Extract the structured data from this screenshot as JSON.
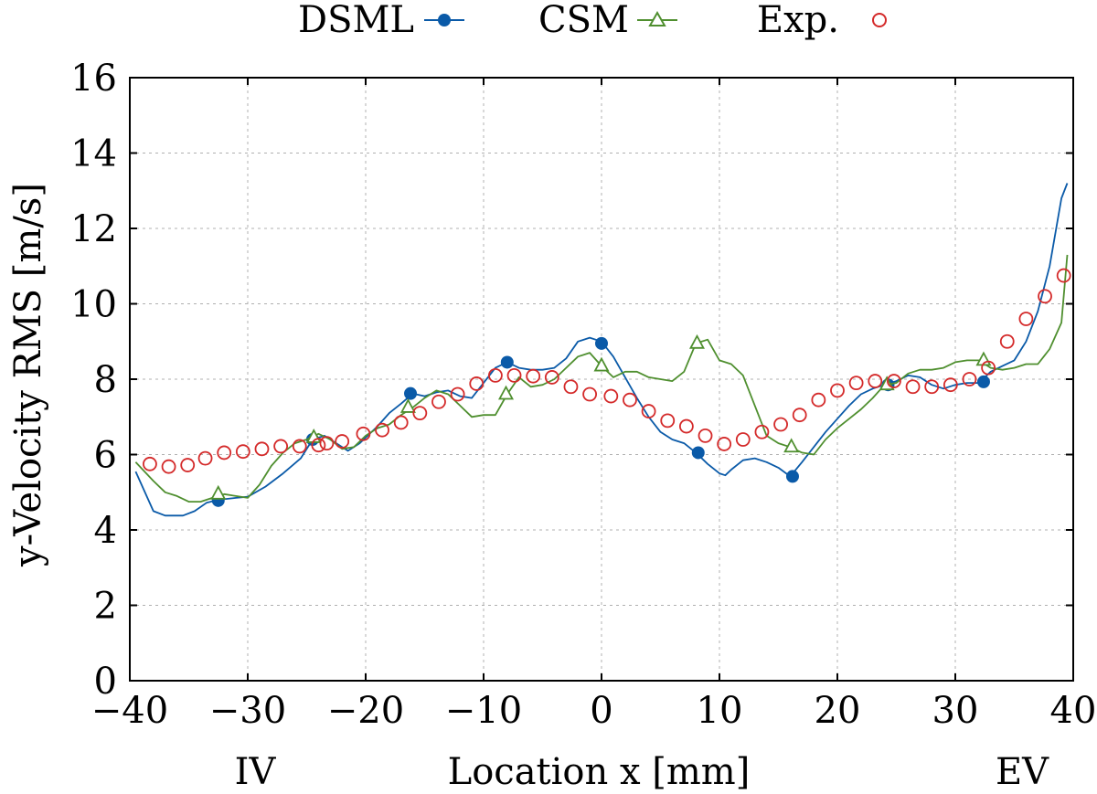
{
  "chart_data": {
    "type": "line",
    "xlabel": "Location x [mm]",
    "ylabel": "y-Velocity RMS [m/s]",
    "xlim": [
      -40,
      40
    ],
    "ylim": [
      0,
      16
    ],
    "xticks": [
      -40,
      -30,
      -20,
      -10,
      0,
      10,
      20,
      30,
      40
    ],
    "yticks": [
      0,
      2,
      4,
      6,
      8,
      10,
      12,
      14,
      16
    ],
    "xtick_labels": [
      "−40",
      "−30",
      "−20",
      "−10",
      "0",
      "10",
      "20",
      "30",
      "40"
    ],
    "ytick_labels": [
      "0",
      "2",
      "4",
      "6",
      "8",
      "10",
      "12",
      "14",
      "16"
    ],
    "grid": true,
    "legend_position": "top-center",
    "annotations": {
      "left": "IV",
      "right": "EV"
    },
    "series": [
      {
        "name": "DSML",
        "color": "#0a5aa8",
        "marker": "filled-circle",
        "line": [
          [
            -39.5,
            5.55
          ],
          [
            -38,
            4.5
          ],
          [
            -37,
            4.38
          ],
          [
            -35.5,
            4.38
          ],
          [
            -34.5,
            4.5
          ],
          [
            -33.5,
            4.72
          ],
          [
            -32.5,
            4.8
          ],
          [
            -31,
            4.85
          ],
          [
            -30,
            4.88
          ],
          [
            -28.5,
            5.15
          ],
          [
            -27,
            5.5
          ],
          [
            -25.5,
            5.9
          ],
          [
            -24.5,
            6.4
          ],
          [
            -23.5,
            6.5
          ],
          [
            -22.5,
            6.3
          ],
          [
            -21.5,
            6.1
          ],
          [
            -20.5,
            6.3
          ],
          [
            -19,
            6.75
          ],
          [
            -18,
            7.1
          ],
          [
            -17,
            7.35
          ],
          [
            -16,
            7.62
          ],
          [
            -15,
            7.55
          ],
          [
            -14,
            7.65
          ],
          [
            -13,
            7.7
          ],
          [
            -12,
            7.55
          ],
          [
            -11,
            7.5
          ],
          [
            -10,
            7.9
          ],
          [
            -9,
            8.3
          ],
          [
            -8,
            8.45
          ],
          [
            -7,
            8.3
          ],
          [
            -6,
            8.25
          ],
          [
            -5,
            8.25
          ],
          [
            -4,
            8.3
          ],
          [
            -3,
            8.55
          ],
          [
            -2,
            9.0
          ],
          [
            -1,
            9.1
          ],
          [
            0,
            9.0
          ],
          [
            1,
            8.6
          ],
          [
            2,
            8.05
          ],
          [
            3,
            7.5
          ],
          [
            4,
            7.0
          ],
          [
            5,
            6.6
          ],
          [
            6,
            6.4
          ],
          [
            7,
            6.3
          ],
          [
            8,
            6.05
          ],
          [
            9,
            5.75
          ],
          [
            10,
            5.5
          ],
          [
            10.5,
            5.45
          ],
          [
            11,
            5.6
          ],
          [
            12,
            5.85
          ],
          [
            13,
            5.9
          ],
          [
            14,
            5.8
          ],
          [
            15,
            5.65
          ],
          [
            16,
            5.42
          ],
          [
            17,
            5.8
          ],
          [
            18,
            6.2
          ],
          [
            19,
            6.6
          ],
          [
            20,
            6.95
          ],
          [
            21,
            7.3
          ],
          [
            22,
            7.6
          ],
          [
            23,
            7.75
          ],
          [
            24,
            7.85
          ],
          [
            25,
            7.95
          ],
          [
            26,
            8.1
          ],
          [
            27,
            8.05
          ],
          [
            28,
            7.85
          ],
          [
            29,
            7.75
          ],
          [
            30,
            7.85
          ],
          [
            31,
            7.9
          ],
          [
            32,
            7.9
          ],
          [
            33,
            8.2
          ],
          [
            34,
            8.35
          ],
          [
            35,
            8.5
          ],
          [
            36,
            9.0
          ],
          [
            37,
            9.8
          ],
          [
            38,
            11.0
          ],
          [
            39,
            12.8
          ],
          [
            39.5,
            13.2
          ]
        ],
        "markers": [
          [
            -32.5,
            4.78
          ],
          [
            -24.5,
            6.4
          ],
          [
            -16.2,
            7.62
          ],
          [
            -8,
            8.45
          ],
          [
            0,
            8.95
          ],
          [
            8.2,
            6.05
          ],
          [
            16.2,
            5.42
          ],
          [
            24.3,
            7.85
          ],
          [
            32.4,
            7.93
          ]
        ]
      },
      {
        "name": "CSM",
        "color": "#4f8f2f",
        "marker": "open-triangle",
        "line": [
          [
            -39.5,
            5.8
          ],
          [
            -38,
            5.3
          ],
          [
            -37,
            5.0
          ],
          [
            -36,
            4.9
          ],
          [
            -35,
            4.75
          ],
          [
            -34,
            4.75
          ],
          [
            -33,
            4.85
          ],
          [
            -32,
            4.95
          ],
          [
            -31,
            4.9
          ],
          [
            -30,
            4.85
          ],
          [
            -29,
            5.2
          ],
          [
            -28,
            5.7
          ],
          [
            -27,
            6.05
          ],
          [
            -26,
            6.3
          ],
          [
            -25,
            6.4
          ],
          [
            -24,
            6.55
          ],
          [
            -23,
            6.4
          ],
          [
            -22,
            6.15
          ],
          [
            -21,
            6.2
          ],
          [
            -20,
            6.5
          ],
          [
            -19,
            6.7
          ],
          [
            -18,
            6.8
          ],
          [
            -17,
            7.05
          ],
          [
            -16,
            7.25
          ],
          [
            -15,
            7.5
          ],
          [
            -14,
            7.7
          ],
          [
            -13,
            7.6
          ],
          [
            -12,
            7.3
          ],
          [
            -11,
            7.0
          ],
          [
            -10,
            7.05
          ],
          [
            -9,
            7.05
          ],
          [
            -8,
            7.6
          ],
          [
            -7,
            8.05
          ],
          [
            -6,
            7.8
          ],
          [
            -5,
            7.85
          ],
          [
            -4,
            8.0
          ],
          [
            -3,
            8.3
          ],
          [
            -2,
            8.6
          ],
          [
            -1,
            8.7
          ],
          [
            0,
            8.35
          ],
          [
            1,
            8.05
          ],
          [
            2,
            8.2
          ],
          [
            3,
            8.2
          ],
          [
            4,
            8.05
          ],
          [
            5,
            8.0
          ],
          [
            6,
            7.95
          ],
          [
            7,
            8.2
          ],
          [
            8,
            8.95
          ],
          [
            9,
            9.05
          ],
          [
            10,
            8.5
          ],
          [
            11,
            8.4
          ],
          [
            12,
            8.1
          ],
          [
            13,
            7.3
          ],
          [
            14,
            6.5
          ],
          [
            15,
            6.3
          ],
          [
            16,
            6.2
          ],
          [
            17,
            6.05
          ],
          [
            18,
            6.0
          ],
          [
            19,
            6.4
          ],
          [
            20,
            6.7
          ],
          [
            21,
            6.95
          ],
          [
            22,
            7.2
          ],
          [
            23,
            7.5
          ],
          [
            24,
            7.85
          ],
          [
            25,
            7.9
          ],
          [
            26,
            8.15
          ],
          [
            27,
            8.25
          ],
          [
            28,
            8.25
          ],
          [
            29,
            8.3
          ],
          [
            30,
            8.45
          ],
          [
            31,
            8.5
          ],
          [
            32,
            8.5
          ],
          [
            33,
            8.3
          ],
          [
            34,
            8.25
          ],
          [
            35,
            8.3
          ],
          [
            36,
            8.4
          ],
          [
            37,
            8.4
          ],
          [
            38,
            8.8
          ],
          [
            39,
            9.5
          ],
          [
            39.5,
            11.3
          ]
        ],
        "markers": [
          [
            -32.5,
            4.95
          ],
          [
            -24.4,
            6.45
          ],
          [
            -16.4,
            7.25
          ],
          [
            -8.1,
            7.6
          ],
          [
            0,
            8.35
          ],
          [
            8.1,
            8.95
          ],
          [
            16.1,
            6.2
          ],
          [
            24.2,
            7.85
          ],
          [
            32.4,
            8.5
          ]
        ]
      },
      {
        "name": "Exp.",
        "color": "#d42a2a",
        "marker": "open-circle",
        "points": [
          [
            -38.3,
            5.75
          ],
          [
            -36.7,
            5.68
          ],
          [
            -35.1,
            5.72
          ],
          [
            -33.6,
            5.9
          ],
          [
            -32,
            6.05
          ],
          [
            -30.4,
            6.08
          ],
          [
            -28.8,
            6.15
          ],
          [
            -27.2,
            6.22
          ],
          [
            -25.6,
            6.22
          ],
          [
            -24,
            6.25
          ],
          [
            -23.3,
            6.3
          ],
          [
            -22,
            6.35
          ],
          [
            -20.2,
            6.55
          ],
          [
            -18.6,
            6.65
          ],
          [
            -17,
            6.85
          ],
          [
            -15.4,
            7.1
          ],
          [
            -13.8,
            7.4
          ],
          [
            -12.2,
            7.6
          ],
          [
            -10.6,
            7.88
          ],
          [
            -9,
            8.1
          ],
          [
            -7.4,
            8.1
          ],
          [
            -5.8,
            8.08
          ],
          [
            -4.2,
            8.05
          ],
          [
            -2.6,
            7.8
          ],
          [
            -1,
            7.6
          ],
          [
            0.8,
            7.55
          ],
          [
            2.4,
            7.45
          ],
          [
            4.0,
            7.15
          ],
          [
            5.6,
            6.9
          ],
          [
            7.2,
            6.75
          ],
          [
            8.8,
            6.5
          ],
          [
            10.4,
            6.28
          ],
          [
            12.0,
            6.4
          ],
          [
            13.6,
            6.6
          ],
          [
            15.2,
            6.8
          ],
          [
            16.8,
            7.05
          ],
          [
            18.4,
            7.45
          ],
          [
            20.0,
            7.7
          ],
          [
            21.6,
            7.9
          ],
          [
            23.2,
            7.95
          ],
          [
            24.8,
            7.95
          ],
          [
            26.4,
            7.8
          ],
          [
            28.0,
            7.8
          ],
          [
            29.6,
            7.85
          ],
          [
            31.2,
            8.0
          ],
          [
            32.8,
            8.3
          ],
          [
            34.4,
            9.0
          ],
          [
            36.0,
            9.6
          ],
          [
            37.6,
            10.2
          ],
          [
            39.2,
            10.75
          ]
        ]
      }
    ]
  }
}
